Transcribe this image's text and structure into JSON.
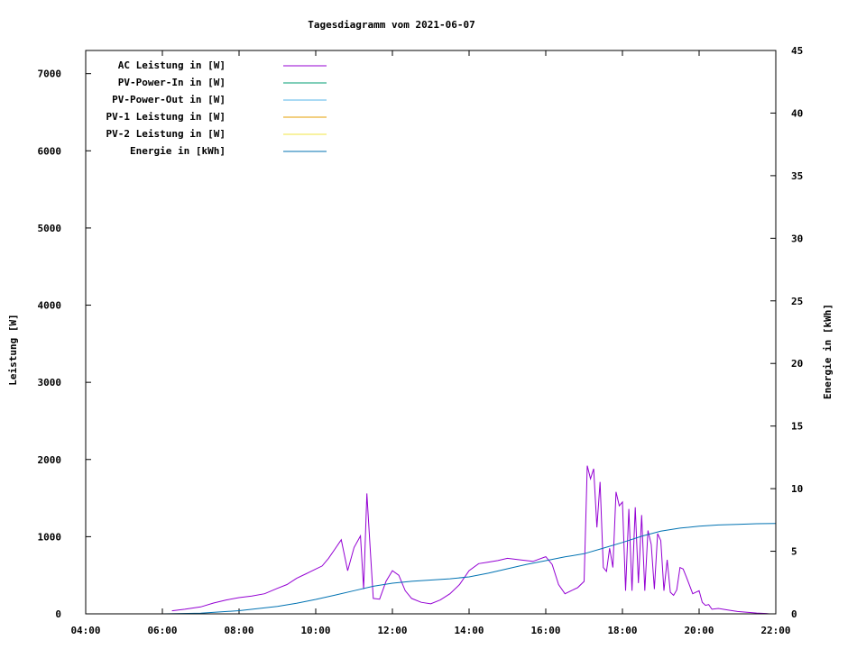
{
  "chart_data": {
    "type": "line",
    "title": "Tagesdiagramm vom 2021-06-07",
    "xlabel": "",
    "ylabel": "Leistung [W]",
    "y2label": "Energie in [kWh]",
    "xlim": [
      "04:00",
      "22:00"
    ],
    "ylim": [
      0,
      7300
    ],
    "y2lim": [
      0,
      45
    ],
    "xticks": [
      "04:00",
      "06:00",
      "08:00",
      "10:00",
      "12:00",
      "14:00",
      "16:00",
      "18:00",
      "20:00",
      "22:00"
    ],
    "yticks": [
      "0",
      "1000",
      "2000",
      "3000",
      "4000",
      "5000",
      "6000",
      "7000"
    ],
    "y2ticks": [
      "0",
      "5",
      "10",
      "15",
      "20",
      "25",
      "30",
      "35",
      "40",
      "45"
    ],
    "legend_position": "top-left",
    "series": [
      {
        "name": "AC Leistung in [W]",
        "axis": "left",
        "color": "#9400d3",
        "x": [
          "06:15",
          "06:35",
          "07:00",
          "07:20",
          "07:40",
          "08:00",
          "08:20",
          "08:40",
          "09:00",
          "09:15",
          "09:30",
          "09:45",
          "10:00",
          "10:10",
          "10:20",
          "10:30",
          "10:40",
          "10:50",
          "11:00",
          "11:10",
          "11:15",
          "11:20",
          "11:25",
          "11:30",
          "11:40",
          "11:50",
          "12:00",
          "12:10",
          "12:20",
          "12:30",
          "12:45",
          "13:00",
          "13:15",
          "13:30",
          "13:45",
          "14:00",
          "14:15",
          "14:30",
          "14:45",
          "15:00",
          "15:20",
          "15:40",
          "16:00",
          "16:10",
          "16:20",
          "16:30",
          "16:40",
          "16:50",
          "17:00",
          "17:05",
          "17:10",
          "17:15",
          "17:20",
          "17:25",
          "17:30",
          "17:35",
          "17:40",
          "17:45",
          "17:50",
          "17:55",
          "18:00",
          "18:05",
          "18:10",
          "18:15",
          "18:20",
          "18:25",
          "18:30",
          "18:35",
          "18:40",
          "18:45",
          "18:50",
          "18:55",
          "19:00",
          "19:05",
          "19:10",
          "19:15",
          "19:20",
          "19:25",
          "19:30",
          "19:35",
          "19:40",
          "19:50",
          "20:00",
          "20:05",
          "20:10",
          "20:15",
          "20:20",
          "20:30",
          "20:45",
          "21:00",
          "21:15",
          "21:30",
          "21:45",
          "21:50"
        ],
        "values": [
          40,
          60,
          90,
          140,
          180,
          210,
          230,
          260,
          330,
          380,
          460,
          520,
          580,
          620,
          720,
          840,
          960,
          560,
          860,
          1010,
          320,
          1560,
          880,
          200,
          190,
          420,
          560,
          500,
          300,
          200,
          150,
          130,
          180,
          260,
          380,
          560,
          650,
          670,
          690,
          720,
          700,
          680,
          740,
          640,
          380,
          260,
          300,
          340,
          420,
          1920,
          1750,
          1880,
          1120,
          1710,
          600,
          550,
          850,
          600,
          1580,
          1400,
          1450,
          300,
          1360,
          300,
          1380,
          400,
          1280,
          300,
          1080,
          900,
          320,
          1040,
          950,
          300,
          700,
          280,
          240,
          310,
          600,
          580,
          480,
          260,
          300,
          150,
          110,
          120,
          60,
          70,
          50,
          30,
          20,
          10,
          5,
          0
        ]
      },
      {
        "name": "PV-Power-In in [W]",
        "axis": "left",
        "color": "#009e73",
        "x": [],
        "values": []
      },
      {
        "name": "PV-Power-Out in [W]",
        "axis": "left",
        "color": "#56b4e9",
        "x": [],
        "values": []
      },
      {
        "name": "PV-1 Leistung in [W]",
        "axis": "left",
        "color": "#e69f00",
        "x": [],
        "values": []
      },
      {
        "name": "PV-2 Leistung in [W]",
        "axis": "left",
        "color": "#f0e442",
        "x": [],
        "values": []
      },
      {
        "name": "Energie in [kWh]",
        "axis": "right",
        "color": "#0072b2",
        "x": [
          "06:00",
          "07:00",
          "08:00",
          "09:00",
          "09:30",
          "10:00",
          "10:30",
          "11:00",
          "11:30",
          "12:00",
          "12:30",
          "13:00",
          "13:30",
          "14:00",
          "14:30",
          "15:00",
          "15:30",
          "16:00",
          "16:30",
          "17:00",
          "17:30",
          "18:00",
          "18:30",
          "19:00",
          "19:30",
          "20:00",
          "20:30",
          "21:00",
          "21:30",
          "22:00"
        ],
        "values": [
          0,
          0.05,
          0.25,
          0.6,
          0.85,
          1.15,
          1.5,
          1.85,
          2.2,
          2.45,
          2.6,
          2.7,
          2.8,
          2.95,
          3.25,
          3.6,
          3.95,
          4.25,
          4.55,
          4.8,
          5.25,
          5.7,
          6.2,
          6.6,
          6.85,
          7.0,
          7.1,
          7.15,
          7.2,
          7.22
        ]
      }
    ]
  }
}
